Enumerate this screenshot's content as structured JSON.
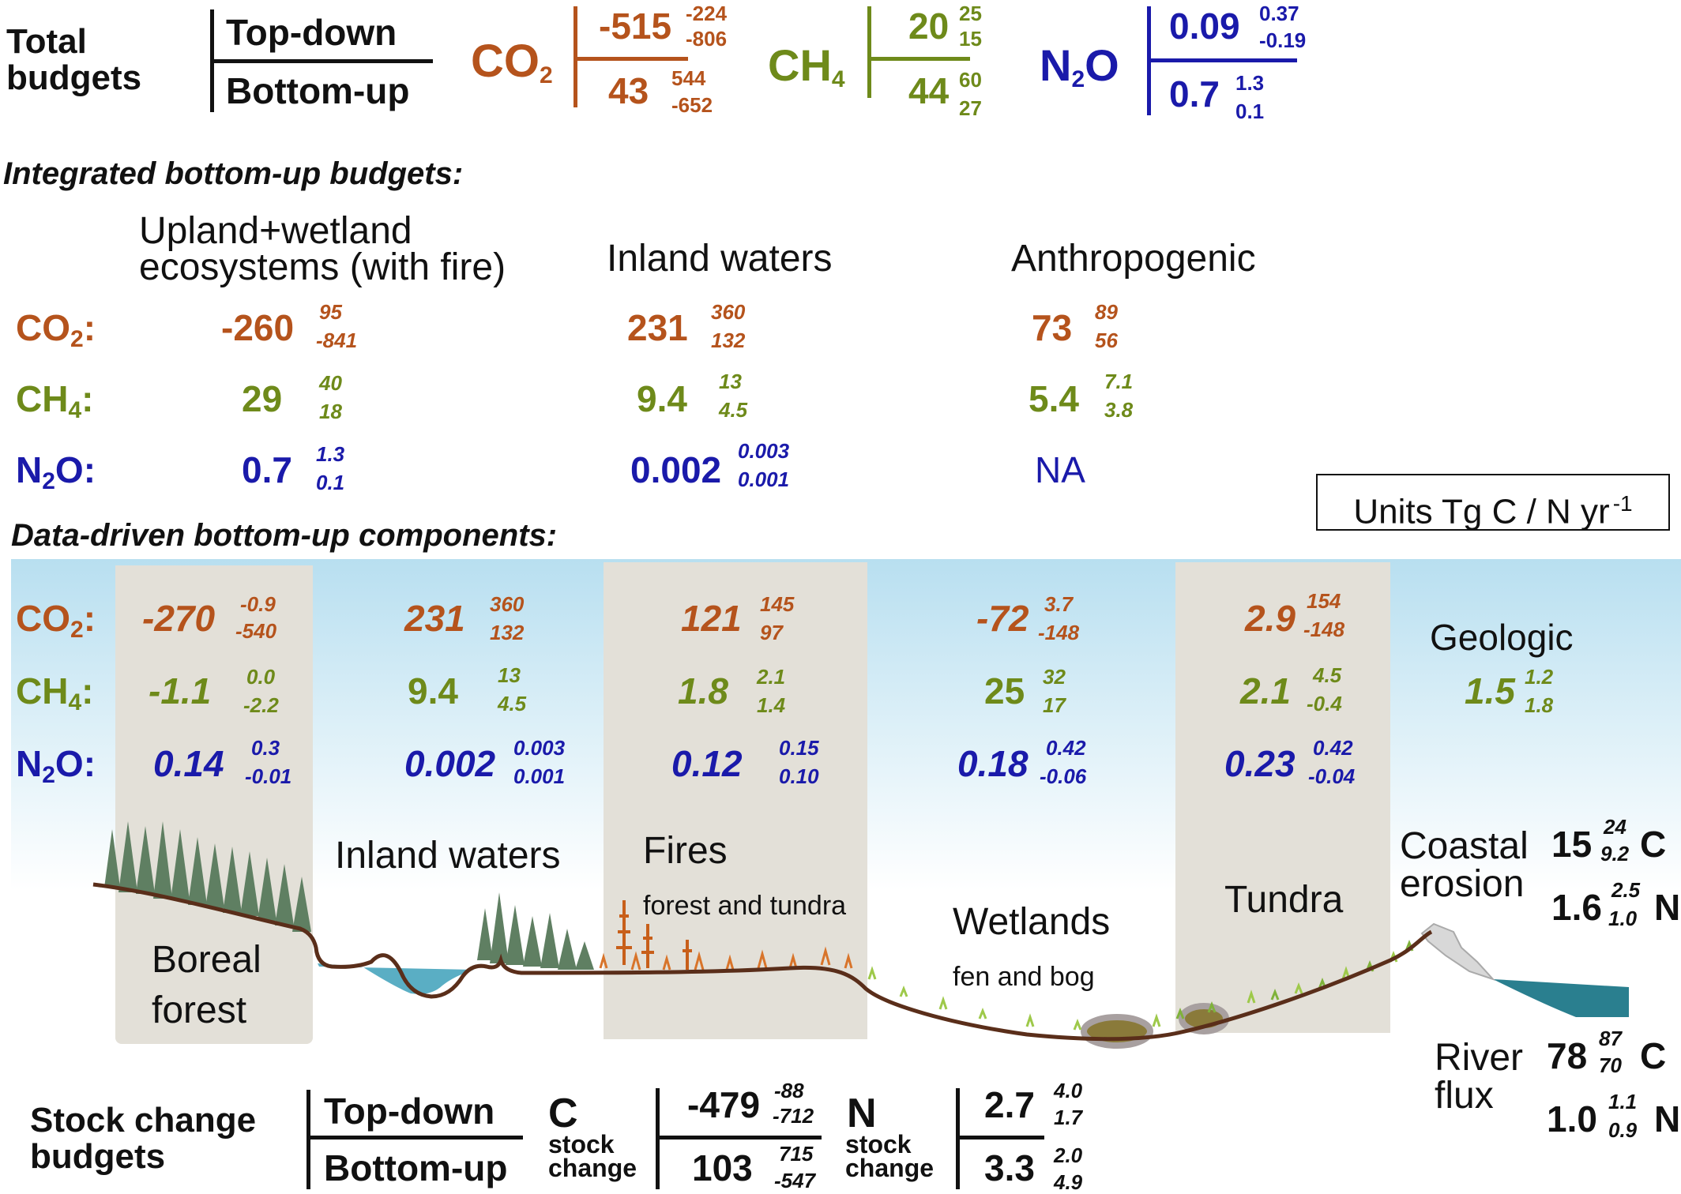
{
  "total": {
    "label": [
      "Total",
      "budgets"
    ],
    "topdown": "Top-down",
    "bottomup": "Bottom-up",
    "co2": {
      "gas": "CO",
      "sub": "2",
      "td": "-515",
      "td_hi": "-224",
      "td_lo": "-806",
      "bu": "43",
      "bu_hi": "544",
      "bu_lo": "-652"
    },
    "ch4": {
      "gas": "CH",
      "sub": "4",
      "td": "20",
      "td_hi": "25",
      "td_lo": "15",
      "bu": "44",
      "bu_hi": "60",
      "bu_lo": "27"
    },
    "n2o": {
      "gas": "N",
      "sub": "2",
      "gas2": "O",
      "td": "0.09",
      "td_hi": "0.37",
      "td_lo": "-0.19",
      "bu": "0.7",
      "bu_hi": "1.3",
      "bu_lo": "0.1"
    }
  },
  "integrated": {
    "heading": "Integrated bottom-up budgets:",
    "col1": [
      "Upland+wetland",
      "ecosystems (with fire)"
    ],
    "col2": "Inland waters",
    "col3": "Anthropogenic",
    "rows": {
      "co2": {
        "gas": "CO",
        "sub": "2",
        "colon": ":",
        "c1": [
          "-260",
          "95",
          "-841"
        ],
        "c2": [
          "231",
          "360",
          "132"
        ],
        "c3": [
          "73",
          "89",
          "56"
        ]
      },
      "ch4": {
        "gas": "CH",
        "sub": "4",
        "colon": ":",
        "c1": [
          "29",
          "40",
          "18"
        ],
        "c2": [
          "9.4",
          "13",
          "4.5"
        ],
        "c3": [
          "5.4",
          "7.1",
          "3.8"
        ]
      },
      "n2o": {
        "gas": "N",
        "sub": "2",
        "gas2": "O:",
        "c1": [
          "0.7",
          "1.3",
          "0.1"
        ],
        "c2": [
          "0.002",
          "0.003",
          "0.001"
        ],
        "c3": "NA"
      }
    }
  },
  "units": {
    "text": "Units Tg C / N yr",
    "sup": "-1"
  },
  "components": {
    "heading": "Data-driven bottom-up components:",
    "co2": [
      [
        "-270",
        "-0.9",
        "-540"
      ],
      [
        "231",
        "360",
        "132"
      ],
      [
        "121",
        "145",
        "97"
      ],
      [
        "-72",
        "3.7",
        "-148"
      ],
      [
        "2.9",
        "154",
        "-148"
      ]
    ],
    "ch4": [
      [
        "-1.1",
        "0.0",
        "-2.2"
      ],
      [
        "9.4",
        "13",
        "4.5"
      ],
      [
        "1.8",
        "2.1",
        "1.4"
      ],
      [
        "25",
        "32",
        "17"
      ],
      [
        "2.1",
        "4.5",
        "-0.4"
      ]
    ],
    "n2o": [
      [
        "0.14",
        "0.3",
        "-0.01"
      ],
      [
        "0.002",
        "0.003",
        "0.001"
      ],
      [
        "0.12",
        "0.15",
        "0.10"
      ],
      [
        "0.18",
        "0.42",
        "-0.06"
      ],
      [
        "0.23",
        "0.42",
        "-0.04"
      ]
    ],
    "geologic": {
      "label": "Geologic",
      "value": "1.5",
      "hi": "1.2",
      "lo": "1.8"
    }
  },
  "landscape": {
    "boreal": [
      "Boreal",
      "forest"
    ],
    "inland": "Inland waters",
    "fires": "Fires",
    "fires_sub": "forest and tundra",
    "wetlands": "Wetlands",
    "wetlands_sub": "fen and bog",
    "tundra": "Tundra",
    "coastal": [
      "Coastal",
      "erosion"
    ],
    "coastal_c": {
      "value": "15",
      "hi": "24",
      "lo": "9.2",
      "unit": "C"
    },
    "coastal_n": {
      "value": "1.6",
      "hi": "2.5",
      "lo": "1.0",
      "unit": "N"
    },
    "river": [
      "River",
      "flux"
    ],
    "river_c": {
      "value": "78",
      "hi": "87",
      "lo": "70",
      "unit": "C"
    },
    "river_n": {
      "value": "1.0",
      "hi": "1.1",
      "lo": "0.9",
      "unit": "N"
    }
  },
  "stock": {
    "label": [
      "Stock change",
      "budgets"
    ],
    "topdown": "Top-down",
    "bottomup": "Bottom-up",
    "c_label": "C",
    "c_sub": [
      "stock",
      "change"
    ],
    "c": {
      "td": "-479",
      "td_hi": "-88",
      "td_lo": "-712",
      "bu": "103",
      "bu_hi": "715",
      "bu_lo": "-547"
    },
    "n_label": "N",
    "n_sub": [
      "stock",
      "change"
    ],
    "n": {
      "td": "2.7",
      "td_hi": "4.0",
      "td_lo": "1.7",
      "bu": "3.3",
      "bu_hi": "2.0",
      "bu_lo": "4.9"
    }
  },
  "colors": {
    "co2": "#b5531c",
    "ch4": "#6e8a1a",
    "n2o": "#1a1aaa",
    "band": "#e3e0d8",
    "water": "#5aaec4",
    "coastal_water": "#2a7f8f",
    "soil": "#5a2e1a"
  }
}
